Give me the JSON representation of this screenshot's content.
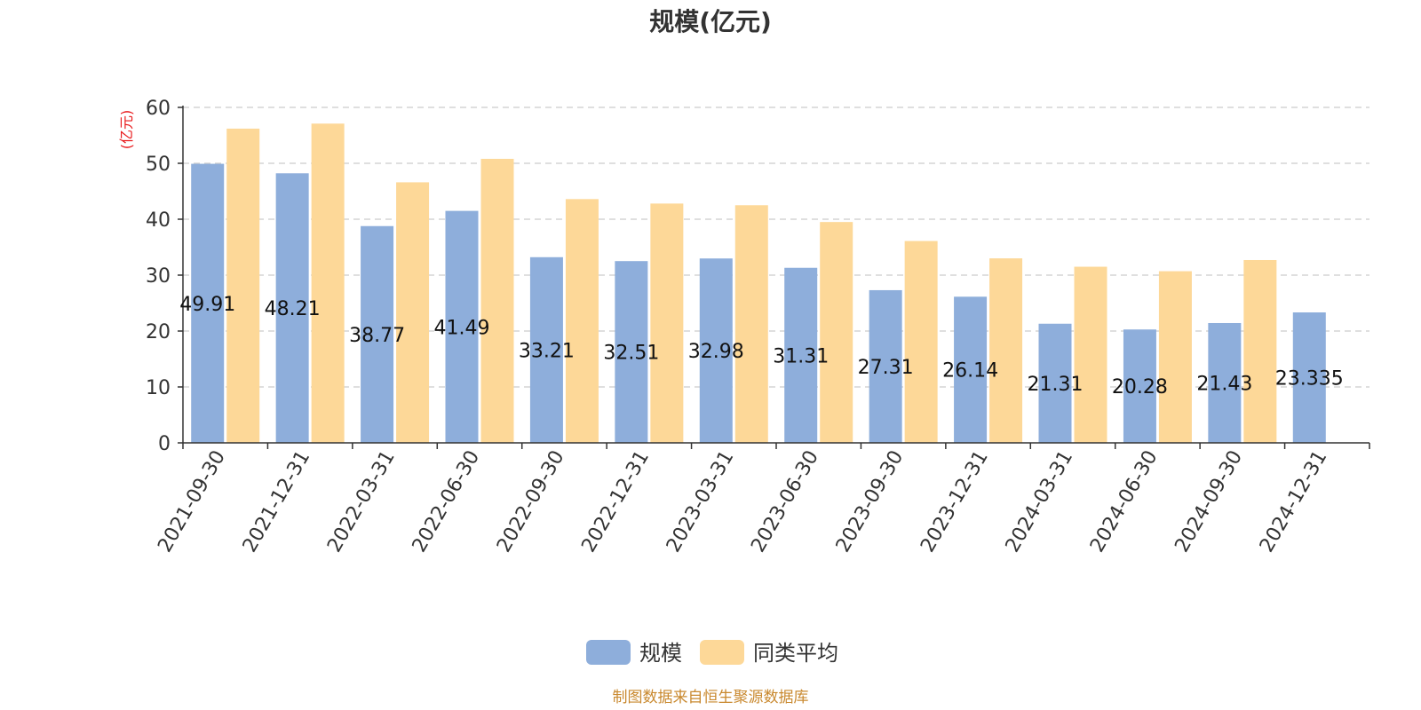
{
  "chart_data": {
    "type": "bar",
    "title": "规模(亿元)",
    "ylabel": "(亿元)",
    "ylim": [
      0,
      60
    ],
    "yticks": [
      0,
      10,
      20,
      30,
      40,
      50,
      60
    ],
    "grid": true,
    "legend_position": "bottom-center",
    "categories": [
      "2021-09-30",
      "2021-12-31",
      "2022-03-31",
      "2022-06-30",
      "2022-09-30",
      "2022-12-31",
      "2023-03-31",
      "2023-06-30",
      "2023-09-30",
      "2023-12-31",
      "2024-03-31",
      "2024-06-30",
      "2024-09-30",
      "2024-12-31"
    ],
    "series": [
      {
        "name": "规模",
        "color": "#8eaedb",
        "values": [
          49.91,
          48.21,
          38.77,
          41.49,
          33.21,
          32.51,
          32.98,
          31.31,
          27.31,
          26.14,
          21.31,
          20.28,
          21.43,
          23.335
        ],
        "labels": [
          "49.91",
          "48.21",
          "38.77",
          "41.49",
          "33.21",
          "32.51",
          "32.98",
          "31.31",
          "27.31",
          "26.14",
          "21.31",
          "20.28",
          "21.43",
          "23.335"
        ]
      },
      {
        "name": "同类平均",
        "color": "#fdd898",
        "values": [
          56.2,
          57.1,
          46.6,
          50.8,
          43.6,
          42.8,
          42.5,
          39.5,
          36.1,
          33.0,
          31.5,
          30.7,
          32.7,
          null
        ]
      }
    ]
  },
  "source_note": "制图数据来自恒生聚源数据库",
  "colors": {
    "ylabel": "#e8191b",
    "source": "#c9892f",
    "axis": "#333333",
    "grid": "#cccccc"
  }
}
